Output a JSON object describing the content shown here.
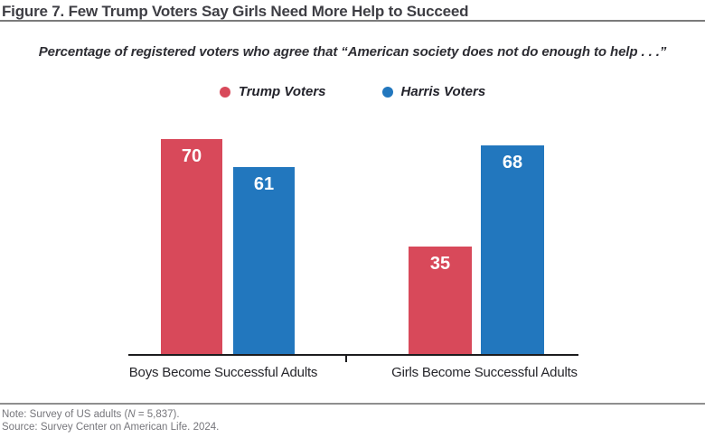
{
  "title": "Figure 7. Few Trump Voters Say Girls Need More Help to Succeed",
  "subtitle": "Percentage of registered voters who agree that “American society does not do enough to help . . .”",
  "legend": {
    "items": [
      {
        "label": "Trump Voters",
        "color": "#D8495A"
      },
      {
        "label": "Harris Voters",
        "color": "#2277BE"
      }
    ]
  },
  "chart_data": {
    "type": "bar",
    "title": "Figure 7. Few Trump Voters Say Girls Need More Help to Succeed",
    "subtitle": "Percentage of registered voters who agree that “American society does not do enough to help . . .”",
    "categories": [
      "Boys Become Successful Adults",
      "Girls Become Successful Adults"
    ],
    "series": [
      {
        "name": "Trump Voters",
        "color": "#D8495A",
        "values": [
          70,
          35
        ]
      },
      {
        "name": "Harris Voters",
        "color": "#2277BE",
        "values": [
          61,
          68
        ]
      }
    ],
    "xlabel": "",
    "ylabel": "",
    "ylim": [
      0,
      79
    ],
    "grid": false,
    "legend_position": "top",
    "value_labels": "inside-top"
  },
  "footer": {
    "note_prefix": "Note: Survey of US adults (",
    "note_n": "N",
    "note_suffix": " = 5,837).",
    "source": "Source: Survey Center on American Life. 2024."
  }
}
